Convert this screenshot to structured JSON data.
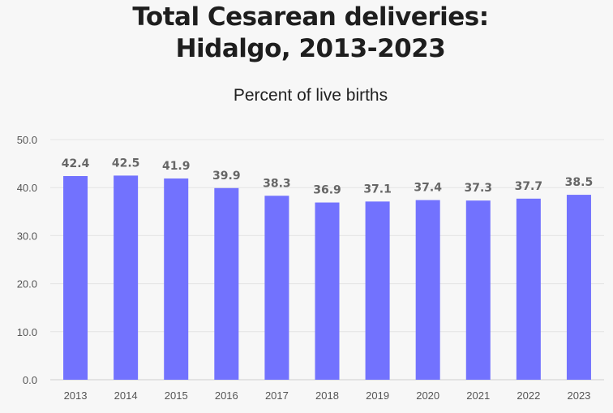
{
  "chart_data": {
    "type": "bar",
    "title_lines": [
      "Total Cesarean deliveries:",
      "Hidalgo, 2013-2023"
    ],
    "subtitle": "Percent of live births",
    "categories": [
      "2013",
      "2014",
      "2015",
      "2016",
      "2017",
      "2018",
      "2019",
      "2020",
      "2021",
      "2022",
      "2023"
    ],
    "values": [
      42.4,
      42.5,
      41.9,
      39.9,
      38.3,
      36.9,
      37.1,
      37.4,
      37.3,
      37.7,
      38.5
    ],
    "ylim": [
      0,
      50
    ],
    "yticks": [
      "0.0",
      "10.0",
      "20.0",
      "30.0",
      "40.0",
      "50.0"
    ],
    "grid": true,
    "bar_color": "#7272fe",
    "label_color": "#666666"
  }
}
